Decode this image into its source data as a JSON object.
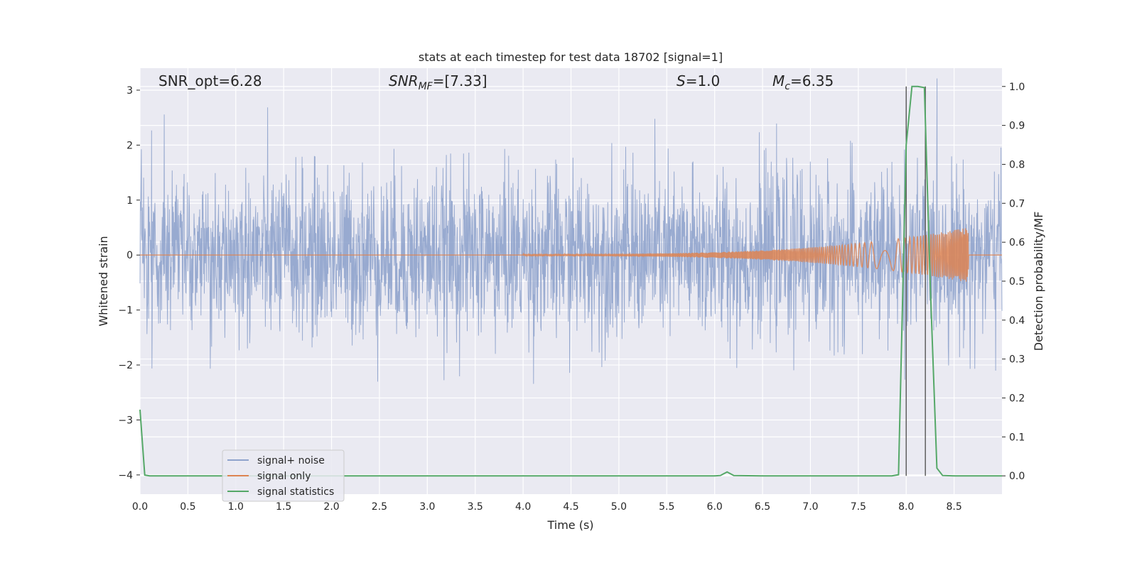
{
  "chart_data": {
    "type": "line",
    "title": "stats at each timestep for test data 18702 [signal=1]",
    "xlabel": "Time (s)",
    "ylabel": "Whitened strain",
    "ylabel_right": "Detection probability/MF",
    "xlim": [
      0,
      9.0
    ],
    "ylim": [
      -4.35,
      3.4
    ],
    "ylim_right": [
      -0.047,
      1.047
    ],
    "x_ticks": [
      "0.0",
      "0.5",
      "1.0",
      "1.5",
      "2.0",
      "2.5",
      "3.0",
      "3.5",
      "4.0",
      "4.5",
      "5.0",
      "5.5",
      "6.0",
      "6.5",
      "7.0",
      "7.5",
      "8.0",
      "8.5"
    ],
    "y_ticks": [
      "3",
      "2",
      "1",
      "0",
      "−1",
      "−2",
      "−3",
      "−4"
    ],
    "y_right_ticks": [
      "1.0",
      "0.9",
      "0.8",
      "0.7",
      "0.6",
      "0.5",
      "0.4",
      "0.3",
      "0.2",
      "0.1",
      "0.0"
    ],
    "annotations": {
      "snr_opt": "SNR_opt=6.28",
      "snr_mf_label": "SNR",
      "snr_mf_sub": "MF",
      "snr_mf_value": "=[7.33]",
      "s_label": "S",
      "s_value": "=1.0",
      "mc_label": "M",
      "mc_sub": "c",
      "mc_value": "=6.35"
    },
    "legend": {
      "placement": "lower-left",
      "entries": [
        "signal+ noise",
        "signal only",
        "signal statistics"
      ]
    },
    "colors": {
      "noise": "#8fa3cc",
      "signal": "#dd8452",
      "stats": "#55a868",
      "background": "#eaeaf2",
      "vline": "#555555"
    },
    "series": [
      {
        "name": "signal+ noise",
        "description_values": {
          "x_range": [
            0,
            9.0
          ],
          "typical_band": [
            -1.2,
            1.2
          ],
          "max": 3.35,
          "min": -3.1
        }
      },
      {
        "name": "signal only",
        "chirp": {
          "start": 4.0,
          "end": 8.65,
          "peak_amplitude": 0.5
        }
      },
      {
        "name": "signal statistics",
        "x": [
          0.0,
          0.05,
          0.1,
          0.15,
          0.5,
          1.0,
          2.0,
          3.0,
          4.0,
          5.0,
          6.0,
          6.06,
          6.13,
          6.2,
          6.5,
          7.0,
          7.5,
          7.85,
          7.92,
          8.0,
          8.06,
          8.12,
          8.19,
          8.25,
          8.32,
          8.38,
          8.5,
          9.0
        ],
        "y": [
          0.17,
          0.002,
          0.0,
          0.0,
          0.0,
          0.0,
          0.0,
          0.0,
          0.0,
          0.0,
          0.0,
          0.001,
          0.01,
          0.001,
          0.0,
          0.0,
          0.0,
          0.0,
          0.003,
          0.85,
          1.0,
          1.0,
          0.997,
          0.5,
          0.02,
          0.001,
          0.0,
          0.0
        ]
      }
    ],
    "vertical_markers": [
      8.0,
      8.2
    ]
  }
}
